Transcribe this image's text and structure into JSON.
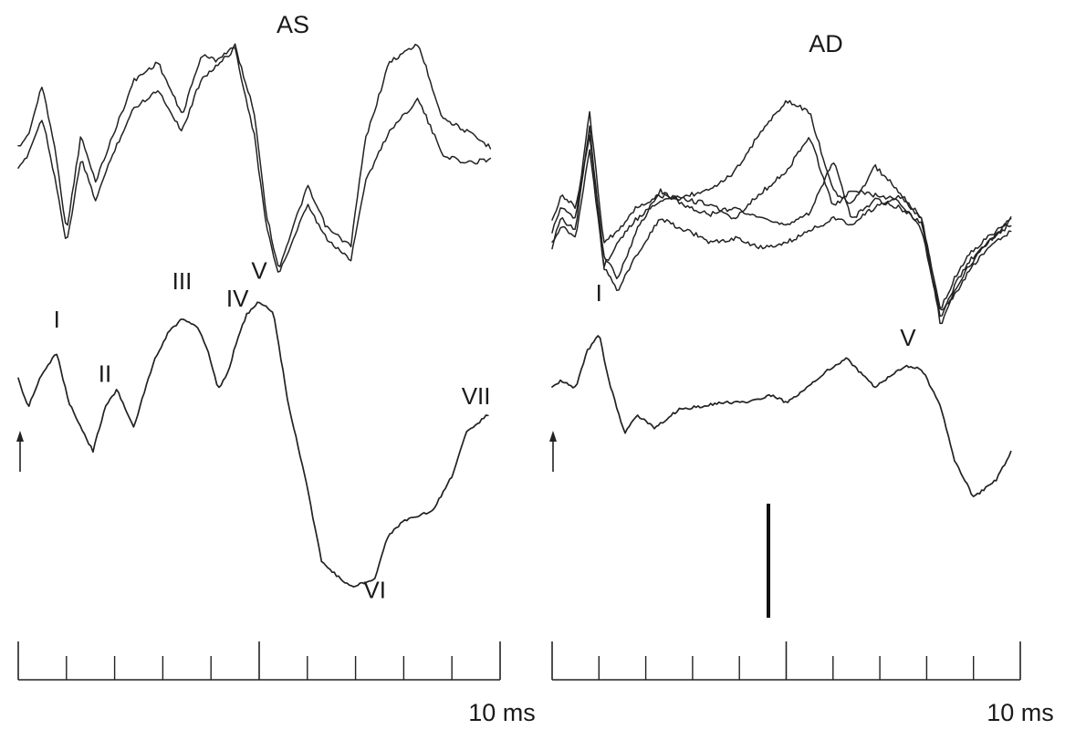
{
  "chart_data": [
    {
      "type": "line",
      "title": "AS",
      "colors": {
        "trace": "#222222",
        "background": "#ffffff"
      },
      "grid": false,
      "x_scale_label": "10 ms",
      "x_range_ms": [
        0,
        10
      ],
      "tick_step_ms": 1,
      "major_tick_step_ms": 5,
      "polarity_arrow": "up",
      "raw_traces": [
        {
          "x": [
            0,
            0.2,
            0.5,
            0.8,
            1.0,
            1.3,
            1.6,
            2.0,
            2.4,
            2.9,
            3.4,
            3.8,
            4.1,
            4.5,
            4.9,
            5.15,
            5.4,
            5.7,
            6.0,
            6.4,
            6.9,
            7.2,
            7.7,
            8.3,
            8.8,
            9.3,
            9.8
          ],
          "y": [
            55,
            60,
            82,
            50,
            18,
            60,
            40,
            62,
            84,
            92,
            69,
            95,
            93,
            99,
            70,
            26,
            2,
            20,
            38,
            20,
            12,
            58,
            92,
            100,
            68,
            62,
            55
          ]
        },
        {
          "x": [
            0,
            0.2,
            0.5,
            0.8,
            1.0,
            1.3,
            1.6,
            2.0,
            2.4,
            2.9,
            3.4,
            3.8,
            4.1,
            4.5,
            4.9,
            5.15,
            5.4,
            5.7,
            6.0,
            6.4,
            6.9,
            7.2,
            7.7,
            8.3,
            8.8,
            9.3,
            9.8
          ],
          "y": [
            45,
            52,
            68,
            38,
            12,
            50,
            32,
            54,
            72,
            80,
            62,
            85,
            90,
            98,
            60,
            20,
            0,
            14,
            30,
            15,
            6,
            40,
            62,
            76,
            52,
            48,
            50
          ]
        }
      ],
      "averaged_trace": {
        "x": [
          0,
          0.2,
          0.5,
          0.8,
          1.05,
          1.3,
          1.55,
          1.8,
          2.05,
          2.4,
          2.8,
          3.1,
          3.4,
          3.75,
          3.95,
          4.15,
          4.35,
          4.55,
          4.75,
          5.0,
          5.3,
          5.6,
          5.95,
          6.3,
          6.9,
          7.4,
          7.65,
          8.0,
          8.6,
          9.0,
          9.3,
          9.75
        ],
        "y": [
          2.0,
          0.8,
          2.2,
          3.0,
          1.0,
          0.0,
          -1.0,
          0.8,
          1.5,
          0.0,
          2.6,
          3.8,
          4.4,
          4.0,
          3.0,
          1.5,
          2.2,
          3.6,
          4.6,
          5.1,
          4.6,
          1.0,
          -2.0,
          -5.5,
          -6.5,
          -6.2,
          -4.5,
          -3.8,
          -3.4,
          -2.0,
          -0.2,
          0.5
        ]
      },
      "peaks": [
        {
          "label": "I",
          "latency_ms": 0.8
        },
        {
          "label": "II",
          "latency_ms": 1.8
        },
        {
          "label": "III",
          "latency_ms": 3.4
        },
        {
          "label": "IV",
          "latency_ms": 4.55
        },
        {
          "label": "V",
          "latency_ms": 5.0
        },
        {
          "label": "VI",
          "latency_ms": 7.4
        },
        {
          "label": "VII",
          "latency_ms": 9.5
        }
      ]
    },
    {
      "type": "line",
      "title": "AD",
      "colors": {
        "trace": "#222222",
        "background": "#ffffff"
      },
      "grid": false,
      "x_scale_label": "10 ms",
      "x_range_ms": [
        0,
        10
      ],
      "tick_step_ms": 1,
      "major_tick_step_ms": 5,
      "polarity_arrow": "up",
      "raw_traces": [
        {
          "x": [
            0,
            0.2,
            0.5,
            0.8,
            1.1,
            1.4,
            1.8,
            2.3,
            2.9,
            3.4,
            3.9,
            4.4,
            5.0,
            5.5,
            6.0,
            6.4,
            6.9,
            7.4,
            7.9,
            8.3,
            8.6,
            8.9,
            9.3,
            9.8
          ],
          "y": [
            40,
            50,
            45,
            90,
            30,
            40,
            50,
            58,
            60,
            62,
            70,
            85,
            100,
            95,
            62,
            56,
            72,
            62,
            50,
            5,
            20,
            30,
            40,
            50
          ]
        },
        {
          "x": [
            0,
            0.2,
            0.5,
            0.8,
            1.1,
            1.4,
            1.8,
            2.3,
            2.9,
            3.4,
            3.9,
            4.4,
            5.0,
            5.5,
            6.0,
            6.4,
            6.9,
            7.4,
            7.9,
            8.3,
            8.6,
            8.9,
            9.3,
            9.8
          ],
          "y": [
            45,
            55,
            50,
            95,
            40,
            45,
            55,
            60,
            58,
            56,
            50,
            60,
            70,
            85,
            55,
            62,
            60,
            58,
            45,
            8,
            22,
            32,
            40,
            48
          ]
        },
        {
          "x": [
            0,
            0.2,
            0.5,
            0.8,
            1.1,
            1.4,
            1.8,
            2.3,
            2.9,
            3.4,
            3.9,
            4.4,
            5.0,
            5.5,
            6.0,
            6.4,
            6.9,
            7.4,
            7.9,
            8.3,
            8.6,
            8.9,
            9.3,
            9.8
          ],
          "y": [
            50,
            60,
            55,
            85,
            35,
            25,
            45,
            62,
            55,
            52,
            55,
            50,
            48,
            52,
            75,
            50,
            58,
            55,
            48,
            12,
            25,
            35,
            42,
            50
          ]
        },
        {
          "x": [
            0,
            0.2,
            0.5,
            0.8,
            1.1,
            1.4,
            1.8,
            2.3,
            2.9,
            3.4,
            3.9,
            4.4,
            5.0,
            5.5,
            6.0,
            6.4,
            6.9,
            7.4,
            7.9,
            8.3,
            8.6,
            8.9,
            9.3,
            9.8
          ],
          "y": [
            38,
            48,
            42,
            80,
            30,
            20,
            35,
            50,
            45,
            40,
            42,
            38,
            40,
            45,
            50,
            48,
            55,
            60,
            50,
            10,
            18,
            28,
            38,
            45
          ]
        }
      ],
      "averaged_trace": {
        "x": [
          0,
          0.2,
          0.5,
          0.75,
          1.0,
          1.2,
          1.55,
          1.8,
          2.2,
          2.7,
          3.2,
          3.7,
          4.2,
          4.7,
          5.0,
          5.45,
          5.9,
          6.3,
          6.9,
          7.3,
          7.6,
          7.9,
          8.3,
          8.6,
          9.0,
          9.5,
          9.8
        ],
        "y": [
          1.0,
          1.4,
          1.0,
          3.0,
          4.0,
          1.5,
          -1.5,
          -0.5,
          -1.2,
          -0.2,
          0.0,
          0.2,
          0.2,
          0.6,
          0.2,
          1.0,
          2.0,
          2.6,
          1.0,
          1.8,
          2.2,
          2.0,
          0.0,
          -3.0,
          -5.0,
          -4.0,
          -2.5
        ]
      },
      "peaks": [
        {
          "label": "I",
          "latency_ms": 1.0
        },
        {
          "label": "V",
          "latency_ms": 7.6
        }
      ]
    }
  ]
}
